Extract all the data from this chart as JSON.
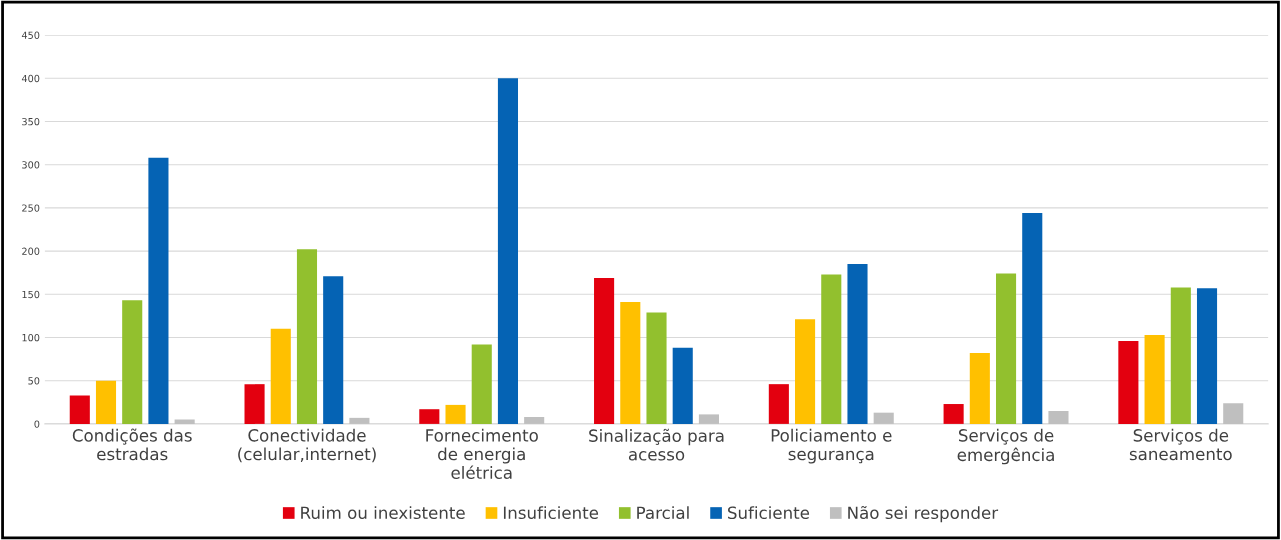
{
  "chart_data": {
    "type": "bar",
    "categories": [
      "Condições das\nestradas",
      "Conectividade\n(celular,internet)",
      "Fornecimento\nde energia\nelétrica",
      "Sinalização para\nacesso",
      "Policiamento e\nsegurança",
      "Serviços de\nemergência",
      "Serviços de\nsaneamento"
    ],
    "series": [
      {
        "name": "Ruim ou inexistente",
        "color": "#e3000f",
        "values": [
          33,
          46,
          17,
          169,
          46,
          23,
          96
        ]
      },
      {
        "name": "Insuficiente",
        "color": "#ffc000",
        "values": [
          50,
          110,
          22,
          141,
          121,
          82,
          103
        ]
      },
      {
        "name": "Parcial",
        "color": "#92c02e",
        "values": [
          143,
          202,
          92,
          129,
          173,
          174,
          158
        ]
      },
      {
        "name": "Suficiente",
        "color": "#0563b4",
        "values": [
          308,
          171,
          400,
          88,
          185,
          244,
          157
        ]
      },
      {
        "name": "Não sei responder",
        "color": "#bfbfbf",
        "values": [
          5,
          7,
          8,
          11,
          13,
          15,
          24
        ]
      }
    ],
    "ylim": [
      0,
      450
    ],
    "yticks": [
      0,
      50,
      100,
      150,
      200,
      250,
      300,
      350,
      400,
      450
    ],
    "grid": "y",
    "legend": "bottom"
  }
}
